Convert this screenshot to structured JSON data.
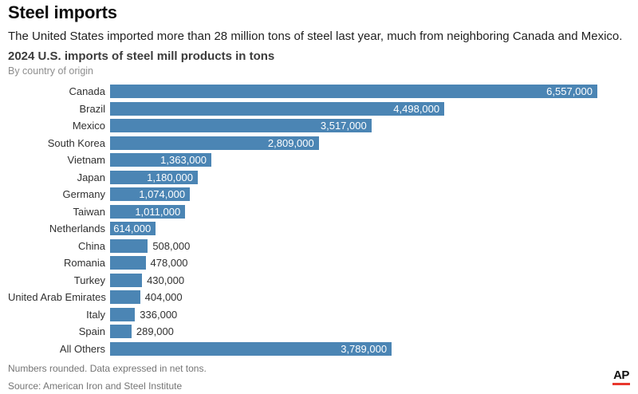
{
  "header": {
    "title": "Steel imports",
    "subtitle": "The United States imported more than 28 million tons of steel last year, much from neighboring Canada and Mexico."
  },
  "chart_data": {
    "type": "bar",
    "orientation": "horizontal",
    "title": "2024 U.S. imports of steel mill products in tons",
    "subtitle": "By country of origin",
    "categories": [
      "Canada",
      "Brazil",
      "Mexico",
      "South Korea",
      "Vietnam",
      "Japan",
      "Germany",
      "Taiwan",
      "Netherlands",
      "China",
      "Romania",
      "Turkey",
      "United Arab Emirates",
      "Italy",
      "Spain",
      "All Others"
    ],
    "values": [
      6557000,
      4498000,
      3517000,
      2809000,
      1363000,
      1180000,
      1074000,
      1011000,
      614000,
      508000,
      478000,
      430000,
      404000,
      336000,
      289000,
      3789000
    ],
    "value_labels": [
      "6,557,000",
      "4,498,000",
      "3,517,000",
      "2,809,000",
      "1,363,000",
      "1,180,000",
      "1,074,000",
      "1,011,000",
      "614,000",
      "508,000",
      "478,000",
      "430,000",
      "404,000",
      "336,000",
      "289,000",
      "3,789,000"
    ],
    "value_label_inside": [
      true,
      true,
      true,
      true,
      true,
      true,
      true,
      true,
      true,
      false,
      false,
      false,
      false,
      false,
      false,
      true
    ],
    "xlim": [
      0,
      6557000
    ],
    "xlabel": "",
    "ylabel": "",
    "grid": false,
    "legend": false,
    "bar_color": "#4b85b4"
  },
  "footer": {
    "note": "Numbers rounded. Data expressed in net tons.",
    "source": "Source: American Iron and Steel Institute",
    "logo": "AP",
    "logo_underline_color": "#e8372d"
  }
}
